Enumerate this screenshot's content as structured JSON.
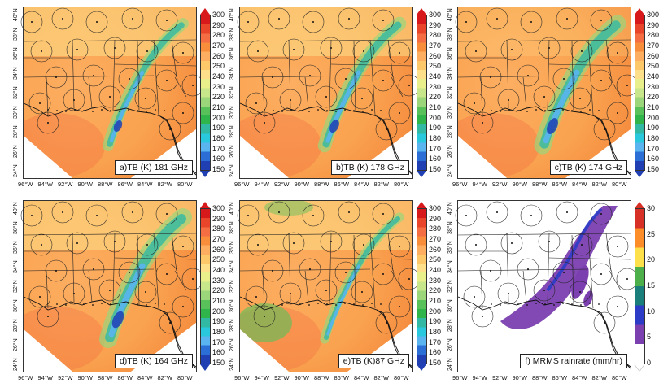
{
  "figure": {
    "panels": [
      {
        "id": "a",
        "caption": "a)TB (K) 181 GHz",
        "type": "tb"
      },
      {
        "id": "b",
        "caption": "b)TB (K) 178 GHz",
        "type": "tb"
      },
      {
        "id": "c",
        "caption": "c)TB (K) 174 GHz",
        "type": "tb"
      },
      {
        "id": "d",
        "caption": "d)TB (K) 164 GHz",
        "type": "tb"
      },
      {
        "id": "e",
        "caption": "e)TB (K)87 GHz",
        "type": "tb"
      },
      {
        "id": "f",
        "caption": "f) MRMS rainrate (mm/hr)",
        "type": "rain"
      }
    ],
    "lat_labels": [
      "40°N",
      "38°N",
      "36°N",
      "34°N",
      "32°N",
      "30°N",
      "28°N",
      "26°N",
      "24°N"
    ],
    "lon_labels": [
      "96°W",
      "94°W",
      "92°W",
      "90°W",
      "88°W",
      "86°W",
      "84°W",
      "82°W",
      "80°W"
    ],
    "tb_colorbar": {
      "ticks": [
        "300",
        "290",
        "280",
        "270",
        "260",
        "250",
        "240",
        "230",
        "220",
        "210",
        "200",
        "190",
        "180",
        "170",
        "160",
        "150"
      ],
      "colors": [
        "#d7191c",
        "#e8452a",
        "#f46d43",
        "#f88d3b",
        "#fdae61",
        "#fdc86a",
        "#fee08b",
        "#e9ef8a",
        "#c8e68a",
        "#9bd67a",
        "#58c15a",
        "#2fb54a",
        "#31b9a4",
        "#29c8dc",
        "#5ab4f0",
        "#2b6fd6",
        "#1f3fb2"
      ]
    },
    "rain_colorbar": {
      "ticks": [
        "30",
        "25",
        "20",
        "15",
        "10",
        "5",
        "0"
      ],
      "colors": [
        "#d73027",
        "#fc8d29",
        "#fee04a",
        "#4daf4a",
        "#1a7f7a",
        "#2c3cc6",
        "#7b3fb0",
        "#ffffff"
      ]
    }
  },
  "chart_data": {
    "type": "heatmap",
    "panels": [
      {
        "label": "a)TB (K) 181 GHz",
        "colorbar_range": [
          150,
          300
        ]
      },
      {
        "label": "b)TB (K) 178 GHz",
        "colorbar_range": [
          150,
          300
        ]
      },
      {
        "label": "c)TB (K) 174 GHz",
        "colorbar_range": [
          150,
          300
        ]
      },
      {
        "label": "d)TB (K) 164 GHz",
        "colorbar_range": [
          150,
          300
        ]
      },
      {
        "label": "e)TB (K)87 GHz",
        "colorbar_range": [
          150,
          300
        ]
      },
      {
        "label": "f) MRMS rainrate (mm/hr)",
        "colorbar_range": [
          0,
          30
        ]
      }
    ],
    "lat_range": [
      24,
      40
    ],
    "lon_range": [
      -96,
      -80
    ]
  }
}
